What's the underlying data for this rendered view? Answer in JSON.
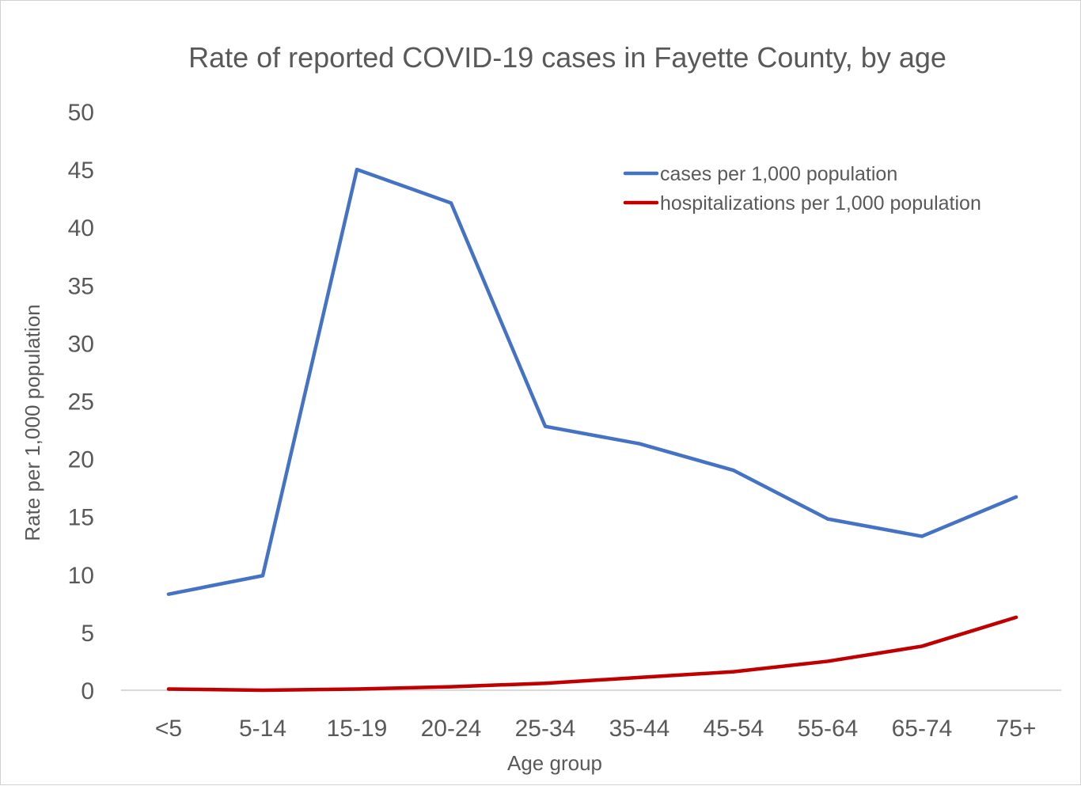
{
  "chart_data": {
    "type": "line",
    "title": "Rate of reported COVID-19 cases in Fayette County, by age",
    "xlabel": "Age group",
    "ylabel": "Rate per 1,000 population",
    "categories": [
      "<5",
      "5-14",
      "15-19",
      "20-24",
      "25-34",
      "35-44",
      "45-54",
      "55-64",
      "65-74",
      "75+"
    ],
    "ylim": [
      0,
      50
    ],
    "yticks": [
      "0",
      "5",
      "10",
      "15",
      "20",
      "25",
      "30",
      "35",
      "40",
      "45",
      "50"
    ],
    "grid": false,
    "legend_position": "top-right",
    "series": [
      {
        "name": "cases per 1,000 population",
        "color": "#4472c4",
        "values": [
          8.3,
          9.9,
          45.0,
          42.1,
          22.8,
          21.3,
          19.0,
          14.8,
          13.3,
          16.7
        ]
      },
      {
        "name": "hospitalizations per 1,000 population",
        "color": "#c00000",
        "values": [
          0.1,
          0.0,
          0.1,
          0.3,
          0.6,
          1.1,
          1.6,
          2.5,
          3.8,
          6.3
        ]
      }
    ]
  }
}
